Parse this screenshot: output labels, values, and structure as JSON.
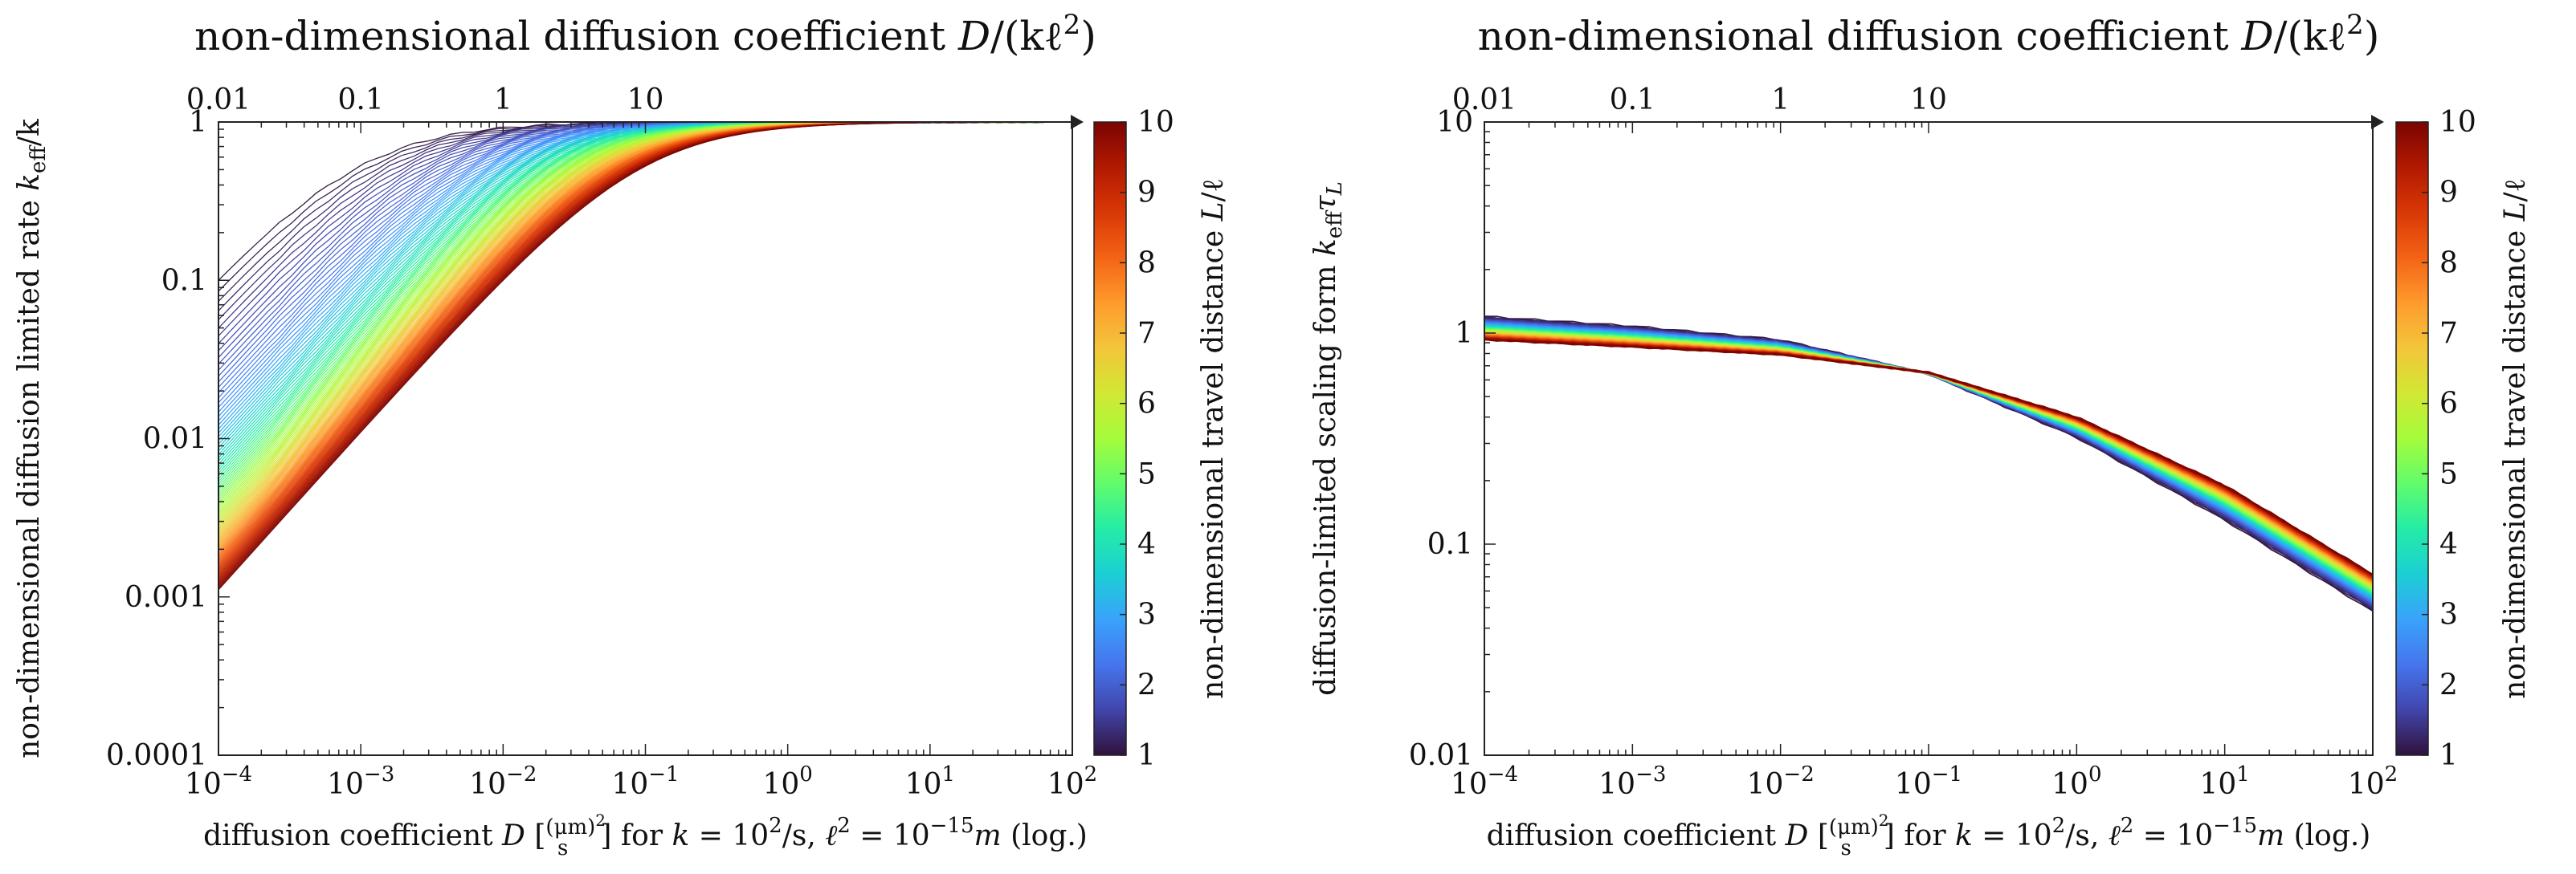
{
  "chart_data": [
    {
      "type": "line",
      "title": "non-dimensional diffusion coefficient D/(kℓ²)",
      "title_parts": {
        "text": "non-dimensional diffusion coefficient ",
        "var": "D",
        "rest": "/(kℓ",
        "sup": "2",
        "close": ")"
      },
      "xscale": "log",
      "yscale": "log",
      "xlim": [
        0.0001,
        100
      ],
      "ylim": [
        0.0001,
        1
      ],
      "top_axis": {
        "ticks": [
          0.01,
          0.1,
          1,
          10
        ],
        "labels": [
          "0.01",
          "0.1",
          "1",
          "10"
        ]
      },
      "x_ticks": [
        {
          "value": 0.0001,
          "base": "10",
          "exp": "−4"
        },
        {
          "value": 0.001,
          "base": "10",
          "exp": "−3"
        },
        {
          "value": 0.01,
          "base": "10",
          "exp": "−2"
        },
        {
          "value": 0.1,
          "base": "10",
          "exp": "−1"
        },
        {
          "value": 1,
          "base": "10",
          "exp": "0"
        },
        {
          "value": 10,
          "base": "10",
          "exp": "1"
        },
        {
          "value": 100,
          "base": "10",
          "exp": "2"
        }
      ],
      "y_ticks": [
        {
          "value": 1,
          "label": "1"
        },
        {
          "value": 0.1,
          "label": "0.1"
        },
        {
          "value": 0.01,
          "label": "0.01"
        },
        {
          "value": 0.001,
          "label": "0.001"
        },
        {
          "value": 0.0001,
          "label": "0.0001"
        }
      ],
      "xlabel": "diffusion coefficient D [(μm)²/s] for k = 10²/s, ℓ² = 10⁻¹⁵m (log.)",
      "ylabel": "non-dimensional diffusion limited rate k_eff/k",
      "ylabel_parts": {
        "text": "non-dimensional diffusion limited rate ",
        "var": "k",
        "sub": "eff",
        "rest": "/k"
      },
      "series_model": "k_eff/k = 1/(1 + L²·k/D), L/ℓ from 1 to 10",
      "series_count": 100,
      "series_L_range": [
        1,
        10
      ],
      "colorbar": {
        "min": 1,
        "max": 10,
        "ticks": [
          "1",
          "2",
          "3",
          "4",
          "5",
          "6",
          "7",
          "8",
          "9",
          "10"
        ],
        "label": "non-dimensional travel distance L/ℓ"
      }
    },
    {
      "type": "line",
      "title": "non-dimensional diffusion coefficient D/(kℓ²)",
      "title_parts": {
        "text": "non-dimensional diffusion coefficient ",
        "var": "D",
        "rest": "/(kℓ",
        "sup": "2",
        "close": ")"
      },
      "xscale": "log",
      "yscale": "log",
      "xlim": [
        0.0001,
        100
      ],
      "ylim": [
        0.01,
        10
      ],
      "top_axis": {
        "ticks": [
          0.01,
          0.1,
          1,
          10
        ],
        "labels": [
          "0.01",
          "0.1",
          "1",
          "10"
        ]
      },
      "x_ticks": [
        {
          "value": 0.0001,
          "base": "10",
          "exp": "−4"
        },
        {
          "value": 0.001,
          "base": "10",
          "exp": "−3"
        },
        {
          "value": 0.01,
          "base": "10",
          "exp": "−2"
        },
        {
          "value": 0.1,
          "base": "10",
          "exp": "−1"
        },
        {
          "value": 1,
          "base": "10",
          "exp": "0"
        },
        {
          "value": 10,
          "base": "10",
          "exp": "1"
        },
        {
          "value": 100,
          "base": "10",
          "exp": "2"
        }
      ],
      "y_ticks": [
        {
          "value": 10,
          "label": "10"
        },
        {
          "value": 1,
          "label": "1"
        },
        {
          "value": 0.1,
          "label": "0.1"
        },
        {
          "value": 0.01,
          "label": "0.01"
        }
      ],
      "xlabel": "diffusion coefficient D [(μm)²/s] for k = 10²/s, ℓ² = 10⁻¹⁵m (log.)",
      "ylabel": "diffusion-limited scaling form k_eff τ_L",
      "ylabel_parts": {
        "text": "diffusion-limited scaling form ",
        "var": "k",
        "sub": "eff",
        "var2": "τ",
        "sub2": "L"
      },
      "series_approx": {
        "L_low": {
          "x": [
            0.0001,
            0.001,
            0.01,
            0.1,
            1,
            10,
            100
          ],
          "y": [
            1.2,
            1.08,
            0.93,
            0.64,
            0.32,
            0.13,
            0.048
          ]
        },
        "L_high": {
          "x": [
            0.0001,
            0.001,
            0.01,
            0.1,
            1,
            10,
            100
          ],
          "y": [
            0.93,
            0.86,
            0.79,
            0.65,
            0.4,
            0.19,
            0.072
          ]
        }
      },
      "series_count": 100,
      "series_L_range": [
        1,
        10
      ],
      "colorbar": {
        "min": 1,
        "max": 10,
        "ticks": [
          "1",
          "2",
          "3",
          "4",
          "5",
          "6",
          "7",
          "8",
          "9",
          "10"
        ],
        "label": "non-dimensional travel distance L/ℓ"
      }
    }
  ],
  "xlabel_parts": {
    "prefix": "diffusion coefficient ",
    "var": "D",
    "bracket_open": " [",
    "frac_num": "(μm)",
    "frac_num_sup": "2",
    "frac_den": "s",
    "bracket_close": "] for ",
    "k": "k",
    "eq1": " = 10",
    "eq1_sup": "2",
    "eq1_rest": "/s, ",
    "ell": "ℓ",
    "ell_sup": "2",
    "eq2": " = 10",
    "eq2_sup": "−15",
    "m": "m",
    "tail": " (log.)"
  },
  "colorbar_label_parts": {
    "text": "non-dimensional travel distance ",
    "var": "L",
    "rest": "/ℓ"
  },
  "colormap": [
    "#30123b",
    "#4145ab",
    "#4675ed",
    "#39a2fc",
    "#1bcfd4",
    "#24eca6",
    "#61fc6c",
    "#a4fc3b",
    "#d1e834",
    "#f3c63a",
    "#fe9b2d",
    "#f36315",
    "#d93806",
    "#b11901",
    "#7a0402"
  ]
}
